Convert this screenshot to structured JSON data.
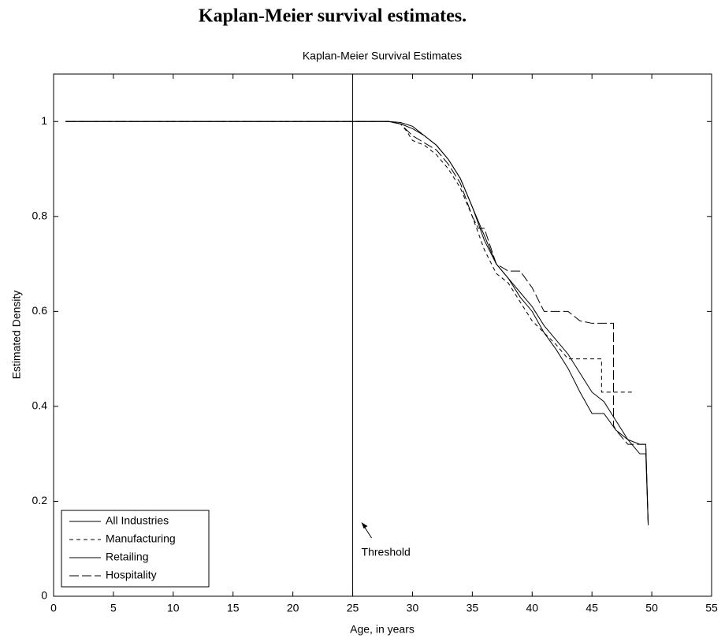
{
  "heading": "Kaplan-Meier survival estimates.",
  "chart_data": {
    "type": "line",
    "title": "Kaplan-Meier Survival Estimates",
    "xlabel": "Age, in years",
    "ylabel": "Estimated Density",
    "xlim": [
      0,
      55
    ],
    "ylim": [
      0,
      1.1
    ],
    "xticks": [
      0,
      5,
      10,
      15,
      20,
      25,
      30,
      35,
      40,
      45,
      50,
      55
    ],
    "yticks": [
      0,
      0.2,
      0.4,
      0.6,
      0.8,
      1
    ],
    "grid": false,
    "legend": "lower left",
    "threshold": 25,
    "annotation": "Threshold",
    "series": [
      {
        "name": "All Industries",
        "color": "#000000",
        "dash": "none",
        "x": [
          1,
          28,
          29,
          30,
          31,
          32,
          33,
          34,
          35,
          36,
          37,
          38,
          39,
          40,
          41,
          42,
          43,
          44,
          45,
          46,
          47,
          48,
          49,
          49.5,
          49.7
        ],
        "values": [
          1,
          1,
          0.998,
          0.99,
          0.97,
          0.95,
          0.92,
          0.88,
          0.82,
          0.75,
          0.7,
          0.67,
          0.64,
          0.61,
          0.57,
          0.54,
          0.51,
          0.47,
          0.43,
          0.41,
          0.37,
          0.33,
          0.32,
          0.32,
          0.15
        ]
      },
      {
        "name": "Manufacturing",
        "color": "#000000",
        "dash": "5,4",
        "x": [
          1,
          28,
          29,
          29.5,
          30,
          31,
          32,
          33,
          34,
          35,
          36,
          37,
          38,
          39,
          40,
          41,
          42,
          43,
          44,
          45,
          45.8,
          45.8,
          46,
          47,
          48.5
        ],
        "values": [
          1,
          1,
          0.995,
          0.98,
          0.96,
          0.95,
          0.93,
          0.9,
          0.86,
          0.8,
          0.73,
          0.68,
          0.66,
          0.62,
          0.58,
          0.555,
          0.53,
          0.5,
          0.5,
          0.5,
          0.5,
          0.43,
          0.43,
          0.43,
          0.43
        ]
      },
      {
        "name": "Retailing",
        "color": "#000000",
        "dash": "none",
        "x": [
          1,
          28,
          29,
          30,
          31,
          32,
          33,
          34,
          35,
          36,
          37,
          38,
          39,
          40,
          41,
          42,
          43,
          44,
          45,
          46,
          47,
          48,
          49,
          49.5,
          49.7
        ],
        "values": [
          1,
          1,
          0.995,
          0.985,
          0.97,
          0.95,
          0.92,
          0.88,
          0.82,
          0.76,
          0.7,
          0.67,
          0.63,
          0.6,
          0.555,
          0.52,
          0.48,
          0.43,
          0.385,
          0.385,
          0.35,
          0.33,
          0.3,
          0.3,
          0.15
        ]
      },
      {
        "name": "Hospitality",
        "color": "#000000",
        "dash": "12,4",
        "x": [
          1,
          28,
          29,
          30,
          31,
          32,
          33,
          34,
          35,
          35.5,
          36,
          37,
          38,
          39,
          40,
          41,
          42,
          43,
          44,
          45,
          46,
          46.8,
          46.8,
          47,
          48,
          49,
          49.5,
          49.7
        ],
        "values": [
          1,
          1,
          0.995,
          0.97,
          0.955,
          0.94,
          0.91,
          0.87,
          0.8,
          0.775,
          0.775,
          0.7,
          0.685,
          0.685,
          0.65,
          0.6,
          0.6,
          0.6,
          0.58,
          0.575,
          0.575,
          0.575,
          0.36,
          0.35,
          0.32,
          0.32,
          0.32,
          0.15
        ]
      }
    ]
  }
}
